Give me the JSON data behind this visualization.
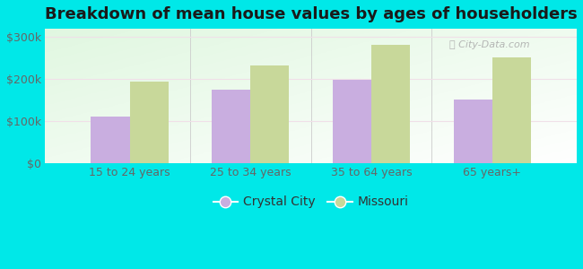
{
  "title": "Breakdown of mean house values by ages of householders",
  "categories": [
    "15 to 24 years",
    "25 to 34 years",
    "35 to 64 years",
    "65 years+"
  ],
  "crystal_city_values": [
    110000,
    175000,
    198000,
    152000
  ],
  "missouri_values": [
    195000,
    232000,
    282000,
    252000
  ],
  "crystal_city_color": "#c9aee0",
  "missouri_color": "#c8d89a",
  "background_color": "#00e8e8",
  "ylim": [
    0,
    320000
  ],
  "yticks": [
    0,
    100000,
    200000,
    300000
  ],
  "ytick_labels": [
    "$0",
    "$100k",
    "$200k",
    "$300k"
  ],
  "legend_labels": [
    "Crystal City",
    "Missouri"
  ],
  "bar_width": 0.32,
  "title_fontsize": 13,
  "tick_fontsize": 9,
  "legend_fontsize": 10,
  "grid_color": "#e0e8d0",
  "watermark": "City-Data.com"
}
